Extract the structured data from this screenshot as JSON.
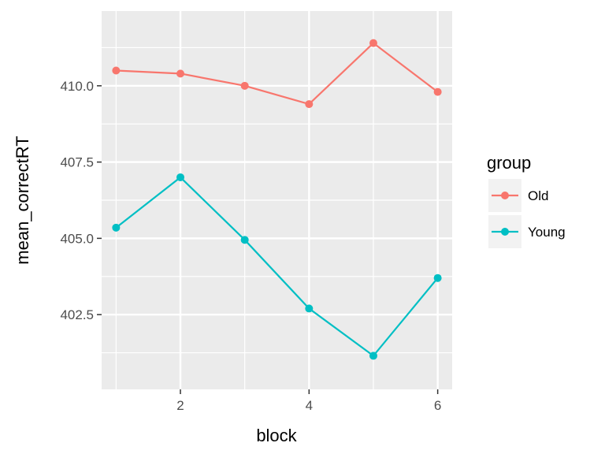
{
  "chart_data": {
    "type": "line",
    "title": "",
    "xlabel": "block",
    "ylabel": "mean_correctRT",
    "xlim": [
      0.775,
      6.225
    ],
    "ylim": [
      400.05,
      412.45
    ],
    "x_ticks": [
      2,
      4,
      6
    ],
    "x_tick_labels": [
      "2",
      "4",
      "6"
    ],
    "y_ticks": [
      402.5,
      405.0,
      407.5,
      410.0
    ],
    "y_tick_labels": [
      "402.5",
      "405.0",
      "407.5",
      "410.0"
    ],
    "grid": true,
    "legend": {
      "title": "group",
      "position": "right"
    },
    "x": [
      1,
      2,
      3,
      4,
      5,
      6
    ],
    "series": [
      {
        "name": "Old",
        "color": "#F8766D",
        "values": [
          410.5,
          410.4,
          410.0,
          409.4,
          411.4,
          409.8
        ]
      },
      {
        "name": "Young",
        "color": "#00BFC4",
        "values": [
          405.35,
          407.0,
          404.95,
          402.7,
          401.15,
          403.7
        ]
      }
    ]
  }
}
